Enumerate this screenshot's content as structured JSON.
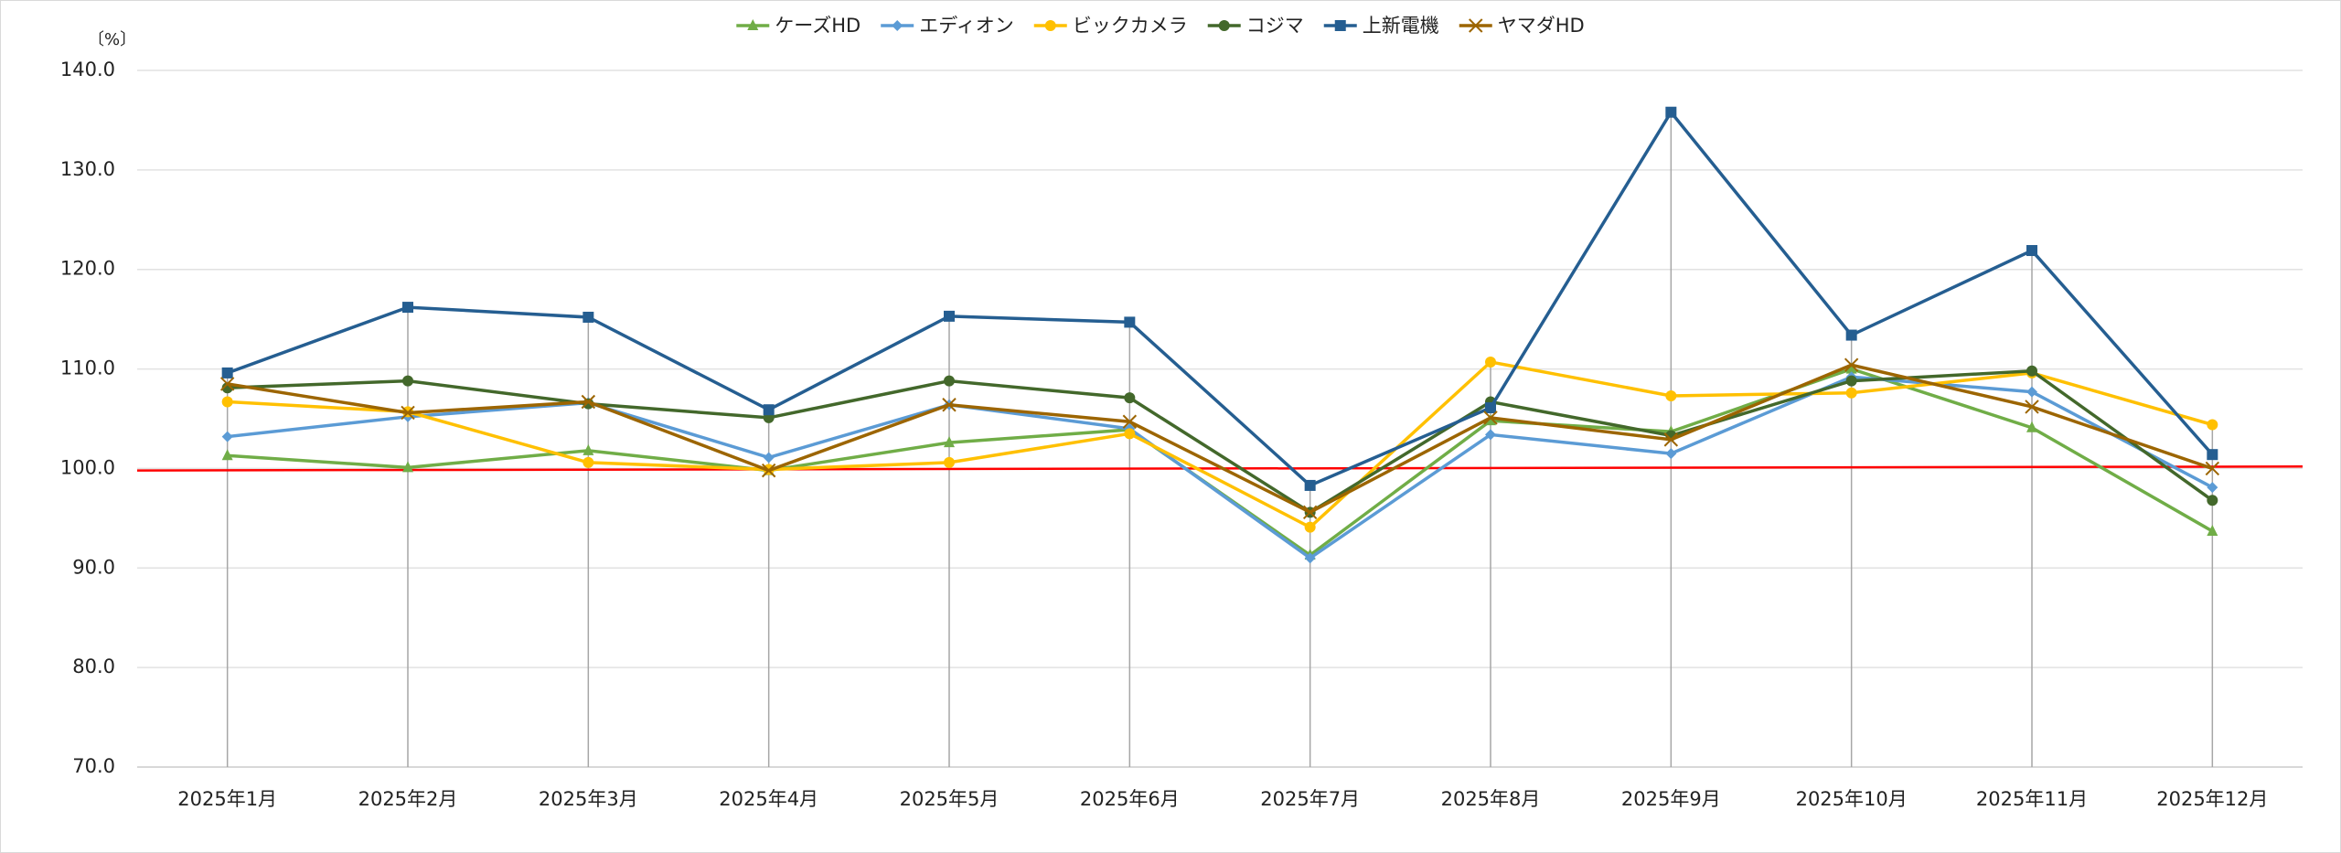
{
  "chart_data": {
    "type": "line",
    "y_unit": "〔%〕",
    "categories": [
      "2025年1月",
      "2025年2月",
      "2025年3月",
      "2025年4月",
      "2025年5月",
      "2025年6月",
      "2025年7月",
      "2025年8月",
      "2025年9月",
      "2025年10月",
      "2025年11月",
      "2025年12月"
    ],
    "series": [
      {
        "name": "ケーズHD",
        "color": "#70ad47",
        "marker": "triangle",
        "values": [
          101.3,
          100.1,
          101.8,
          99.8,
          102.6,
          103.9,
          91.3,
          104.8,
          103.7,
          110.0,
          104.1,
          93.7
        ]
      },
      {
        "name": "エディオン",
        "color": "#5b9bd5",
        "marker": "diamond",
        "values": [
          103.2,
          105.2,
          106.6,
          101.1,
          106.4,
          104.0,
          91.0,
          103.4,
          101.5,
          109.2,
          107.7,
          98.1
        ]
      },
      {
        "name": "ビックカメラ",
        "color": "#ffc000",
        "marker": "circle",
        "values": [
          106.7,
          105.7,
          100.6,
          99.9,
          100.6,
          103.5,
          94.1,
          110.7,
          107.3,
          107.6,
          109.6,
          104.4
        ]
      },
      {
        "name": "コジマ",
        "color": "#43682b",
        "marker": "circle",
        "values": [
          108.1,
          108.8,
          106.5,
          105.1,
          108.8,
          107.1,
          95.6,
          106.7,
          103.3,
          108.8,
          109.8,
          96.8
        ]
      },
      {
        "name": "上新電機",
        "color": "#255e91",
        "marker": "square",
        "values": [
          109.6,
          116.2,
          115.2,
          105.9,
          115.3,
          114.7,
          98.3,
          106.1,
          135.8,
          113.4,
          121.9,
          101.4
        ]
      },
      {
        "name": "ヤマダHD",
        "color": "#9c6500",
        "marker": "x",
        "values": [
          108.5,
          105.6,
          106.7,
          99.8,
          106.4,
          104.7,
          95.6,
          105.1,
          102.9,
          110.4,
          106.2,
          100.0
        ]
      }
    ],
    "reference_line": {
      "color": "#ff0000",
      "values": [
        99.8,
        100.2
      ]
    },
    "ylim": [
      70,
      140
    ],
    "yticks": [
      {
        "value": 70,
        "label": "70.0"
      },
      {
        "value": 80,
        "label": "80.0"
      },
      {
        "value": 90,
        "label": "90.0"
      },
      {
        "value": 100,
        "label": "100.0"
      },
      {
        "value": 110,
        "label": "110.0"
      },
      {
        "value": 120,
        "label": "120.0"
      },
      {
        "value": 130,
        "label": "130.0"
      },
      {
        "value": 140,
        "label": "140.0"
      }
    ],
    "grid": true,
    "legend": "top"
  }
}
